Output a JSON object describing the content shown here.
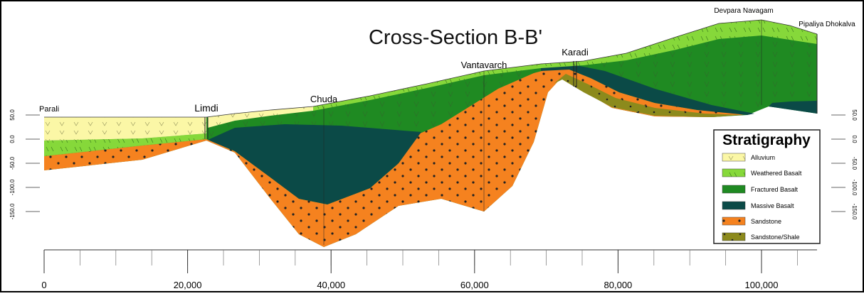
{
  "title": "Cross-Section B-B'",
  "locations": [
    "Parali",
    "Limdi",
    "Chuda",
    "Vantavarch",
    "Karadi",
    "Devpara Navagam",
    "Pipaliya Dhokalva"
  ],
  "legend": {
    "title": "Stratigraphy",
    "items": [
      "Alluvium",
      "Weathered Basalt",
      "Fractured Basalt",
      "Massive Basalt",
      "Sandstone",
      "Sandstone/Shale"
    ]
  },
  "x_axis": {
    "ticks": [
      0,
      {
        "value": 20000,
        "label": "20,000"
      },
      {
        "value": 40000,
        "label": "40,000"
      },
      {
        "value": 60000,
        "label": "60,000"
      },
      {
        "value": 80000,
        "label": "80,000"
      },
      {
        "value": 100000,
        "label": "100,000"
      }
    ]
  },
  "y_axis": {
    "ticks": [
      {
        "value": 50,
        "label": "50.0"
      },
      {
        "value": 0,
        "label": "0.0"
      },
      {
        "value": -50,
        "label": "-50.0"
      },
      {
        "value": -100,
        "label": "-100.0"
      },
      {
        "value": -150,
        "label": "-150.0"
      }
    ]
  }
}
